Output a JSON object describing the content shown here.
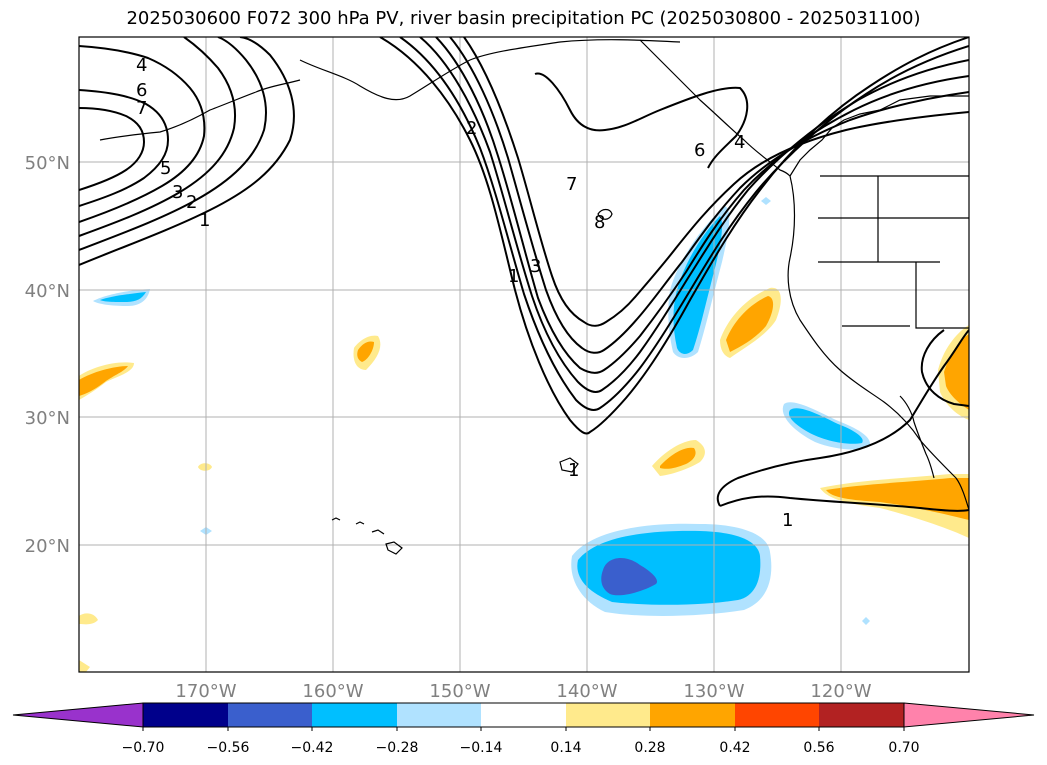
{
  "title": "2025030600 F072 300 hPa PV, river basin precipitation PC (2025030800 - 2025031100)",
  "longitude_labels": [
    "170°W",
    "160°W",
    "150°W",
    "140°W",
    "130°W",
    "120°W"
  ],
  "latitude_labels": [
    "50°N",
    "40°N",
    "30°N",
    "20°N"
  ],
  "contour_labels": [
    "4",
    "6",
    "7",
    "5",
    "3",
    "2",
    "1",
    "2",
    "7",
    "8",
    "3",
    "1",
    "6",
    "4",
    "1",
    "1"
  ],
  "colorbar": {
    "tick_labels": [
      "−0.70",
      "−0.56",
      "−0.42",
      "−0.28",
      "−0.14",
      "0.14",
      "0.28",
      "0.42",
      "0.56",
      "0.70"
    ],
    "colors": [
      "#9932cc",
      "#00008b",
      "#3a5fcd",
      "#00bfff",
      "#b0e2ff",
      "#ffffff",
      "#ffea8c",
      "#ffa500",
      "#ff4500",
      "#b22222",
      "#ff82ab"
    ]
  },
  "palette": {
    "neg_light": "#b0e2ff",
    "neg_medium": "#00bfff",
    "neg_strong": "#3a5fcd",
    "pos_light": "#ffea8c",
    "pos_medium": "#ffa500"
  }
}
